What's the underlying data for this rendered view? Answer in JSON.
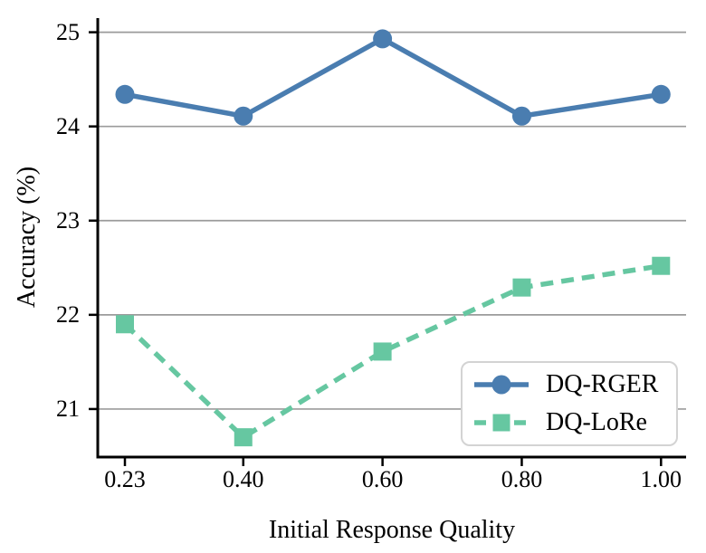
{
  "chart_data": {
    "type": "line",
    "title": "",
    "xlabel": "Initial Response Quality",
    "ylabel": "Accuracy (%)",
    "x": [
      0.23,
      0.4,
      0.6,
      0.8,
      1.0
    ],
    "x_tick_labels": [
      "0.23",
      "0.40",
      "0.60",
      "0.80",
      "1.00"
    ],
    "y_ticks": [
      21,
      22,
      23,
      24,
      25
    ],
    "y_tick_labels": [
      "21",
      "22",
      "23",
      "24",
      "25"
    ],
    "xlim": [
      0.191,
      1.036
    ],
    "ylim": [
      20.49,
      25.15
    ],
    "grid": "horizontal-only",
    "gridline_color": "#9b9b9b",
    "axis_color": "#000000",
    "legend_position": "lower-right",
    "legend_border_color": "#d3d3d3",
    "series": [
      {
        "name": "DQ-RGER",
        "color": "#4a7db0",
        "line_style": "solid",
        "marker": "circle",
        "values": [
          24.34,
          24.11,
          24.93,
          24.11,
          24.34
        ]
      },
      {
        "name": "DQ-LoRe",
        "color": "#66c7a1",
        "line_style": "dashed",
        "marker": "square",
        "values": [
          21.9,
          20.7,
          21.61,
          22.29,
          22.52
        ]
      }
    ]
  }
}
